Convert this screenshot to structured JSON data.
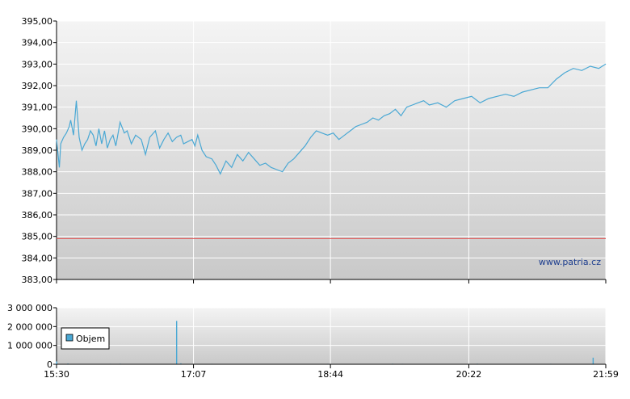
{
  "watermark": "www.patria.cz",
  "colors": {
    "price_line": "#4aa8d4",
    "reference_line": "#e05050",
    "volume_bar": "#4aa8d4",
    "grid": "#ffffff",
    "plot_bg_top": "#f4f4f4",
    "plot_bg_bottom": "#c9c9c9"
  },
  "chart_data": [
    {
      "type": "line",
      "name": "price",
      "ylim": [
        383,
        395
      ],
      "yticks": [
        "395,00",
        "394,00",
        "393,00",
        "392,00",
        "391,00",
        "390,00",
        "389,00",
        "388,00",
        "387,00",
        "386,00",
        "385,00",
        "384,00",
        "383,00"
      ],
      "reference_value": 384.9,
      "x_minutes": [
        0,
        2,
        3,
        5,
        7,
        9,
        10,
        12,
        14,
        16,
        18,
        20,
        22,
        24,
        26,
        28,
        30,
        32,
        34,
        36,
        38,
        40,
        42,
        45,
        48,
        50,
        53,
        56,
        60,
        63,
        66,
        70,
        73,
        76,
        79,
        82,
        85,
        88,
        90,
        93,
        96,
        98,
        100,
        103,
        106,
        110,
        113,
        116,
        120,
        124,
        128,
        132,
        136,
        140,
        144,
        148,
        152,
        156,
        160,
        164,
        168,
        172,
        176,
        180,
        184,
        188,
        192,
        196,
        200,
        204,
        208,
        212,
        216,
        220,
        224,
        228,
        232,
        236,
        240,
        244,
        248,
        252,
        256,
        260,
        264,
        270,
        276,
        282,
        288,
        294,
        300,
        306,
        312,
        318,
        324,
        330,
        336,
        342,
        348,
        354,
        360,
        366,
        372,
        378,
        384,
        389
      ],
      "values": [
        389.5,
        388.2,
        389.3,
        389.6,
        389.8,
        390.1,
        390.4,
        389.7,
        391.3,
        389.6,
        389.0,
        389.3,
        389.5,
        389.9,
        389.7,
        389.2,
        390.0,
        389.3,
        389.9,
        389.1,
        389.5,
        389.7,
        389.2,
        390.3,
        389.8,
        389.9,
        389.3,
        389.7,
        389.5,
        388.8,
        389.6,
        389.9,
        389.1,
        389.5,
        389.8,
        389.4,
        389.6,
        389.7,
        389.3,
        389.4,
        389.5,
        389.2,
        389.7,
        389.0,
        388.7,
        388.6,
        388.3,
        387.9,
        388.5,
        388.2,
        388.8,
        388.5,
        388.9,
        388.6,
        388.3,
        388.4,
        388.2,
        388.1,
        388.0,
        388.4,
        388.6,
        388.9,
        389.2,
        389.6,
        389.9,
        389.8,
        389.7,
        389.8,
        389.5,
        389.7,
        389.9,
        390.1,
        390.2,
        390.3,
        390.5,
        390.4,
        390.6,
        390.7,
        390.9,
        390.6,
        391.0,
        391.1,
        391.2,
        391.3,
        391.1,
        391.2,
        391.0,
        391.3,
        391.4,
        391.5,
        391.2,
        391.4,
        391.5,
        391.6,
        391.5,
        391.7,
        391.8,
        391.9,
        391.9,
        392.3,
        392.6,
        392.8,
        392.7,
        392.9,
        392.8,
        393.0
      ]
    },
    {
      "type": "bar",
      "name": "volume",
      "series_name": "Objem",
      "ylim": [
        0,
        3000000
      ],
      "yticks": [
        "3 000 000",
        "2 000 000",
        "1 000 000",
        "0"
      ],
      "x_minutes": [
        0,
        8,
        15,
        22,
        30,
        38,
        45,
        52,
        60,
        68,
        75,
        82,
        85,
        88,
        95,
        102,
        110,
        118,
        125,
        132,
        140,
        148,
        155,
        163,
        170,
        178,
        185,
        192,
        200,
        208,
        215,
        222,
        230,
        238,
        245,
        252,
        260,
        268,
        275,
        282,
        290,
        298,
        305,
        312,
        320,
        328,
        335,
        342,
        350,
        358,
        365,
        372,
        380,
        386
      ],
      "values": [
        150000,
        40000,
        20000,
        15000,
        20000,
        25000,
        30000,
        20000,
        15000,
        10000,
        20000,
        15000,
        2300000,
        50000,
        20000,
        15000,
        25000,
        10000,
        20000,
        15000,
        20000,
        10000,
        15000,
        20000,
        20000,
        15000,
        10000,
        25000,
        15000,
        20000,
        10000,
        15000,
        20000,
        30000,
        25000,
        15000,
        20000,
        10000,
        15000,
        20000,
        15000,
        30000,
        20000,
        15000,
        20000,
        10000,
        15000,
        20000,
        25000,
        20000,
        15000,
        10000,
        350000,
        20000
      ]
    }
  ],
  "x_axis": {
    "tick_minutes": [
      0,
      97,
      194,
      292,
      389
    ],
    "tick_labels": [
      "15:30",
      "17:07",
      "18:44",
      "20:22",
      "21:59"
    ]
  }
}
